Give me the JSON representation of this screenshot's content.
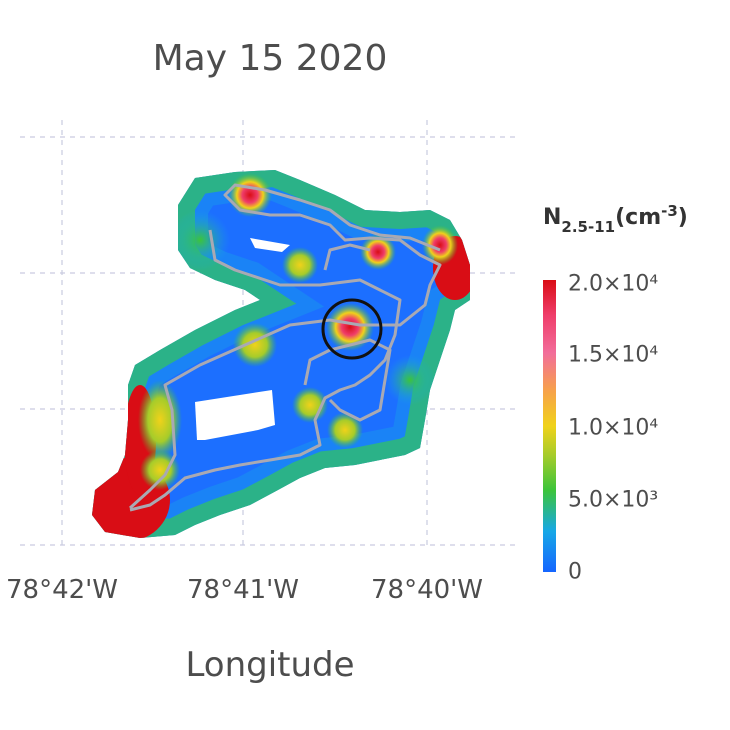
{
  "title": "May 15 2020",
  "x_axis": {
    "label": "Longitude",
    "ticks": [
      "78°42'W",
      "78°41'W",
      "78°40'W"
    ]
  },
  "colorbar": {
    "title_main": "N",
    "title_sub": "2.5-11",
    "title_unit": "(cm",
    "title_exp": "-3",
    "title_close": ")",
    "ticks": [
      "2.0×10⁴",
      "1.5×10⁴",
      "1.0×10⁴",
      "5.0×10³",
      "0"
    ],
    "colors": [
      "#1565ff",
      "#17a8e6",
      "#3cc43a",
      "#a6cc2a",
      "#f0d21a",
      "#f7a24a",
      "#f26d9a",
      "#ef3d6a",
      "#d90d15"
    ]
  },
  "chart_data": {
    "type": "heatmap",
    "title": "May 15 2020",
    "xlabel": "Longitude",
    "x_ticks": [
      "78°42'W",
      "78°41'W",
      "78°40'W"
    ],
    "colorbar_range": [
      0,
      20000
    ],
    "colorbar_ticks": [
      0,
      5000,
      10000,
      15000,
      20000
    ],
    "grid": true,
    "annotations": [
      "black circle marking a high-concentration hotspot"
    ]
  }
}
